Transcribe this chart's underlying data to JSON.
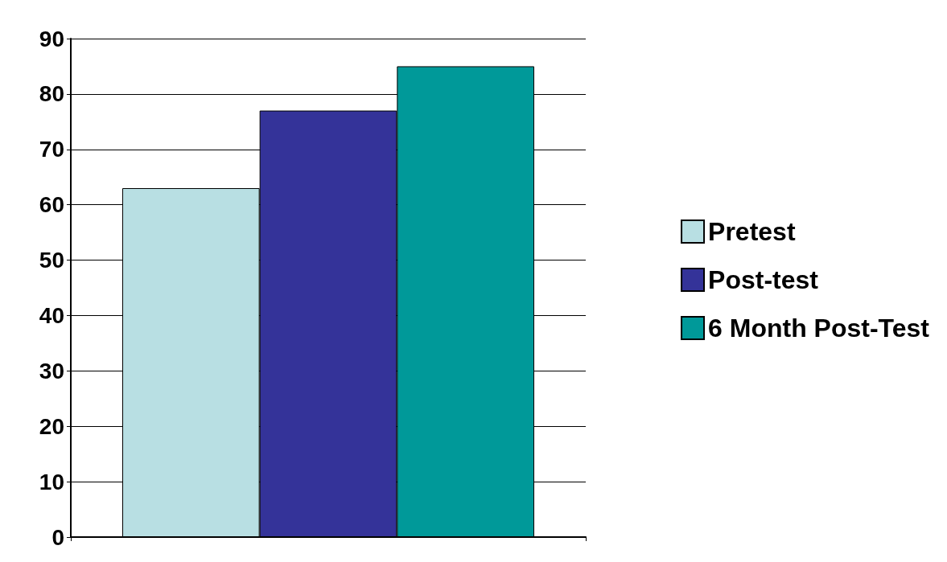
{
  "chart_data": {
    "type": "bar",
    "categories": [
      null
    ],
    "series": [
      {
        "name": "Pretest",
        "color": "#b8dfe3",
        "values": [
          63
        ]
      },
      {
        "name": "Post-test",
        "color": "#343399",
        "values": [
          77
        ]
      },
      {
        "name": "6 Month Post-Test",
        "color": "#009999",
        "values": [
          85
        ]
      }
    ],
    "ylim": [
      0,
      90
    ],
    "yticks": [
      0,
      10,
      20,
      30,
      40,
      50,
      60,
      70,
      80,
      90
    ],
    "grid": "y",
    "legend": "right"
  }
}
